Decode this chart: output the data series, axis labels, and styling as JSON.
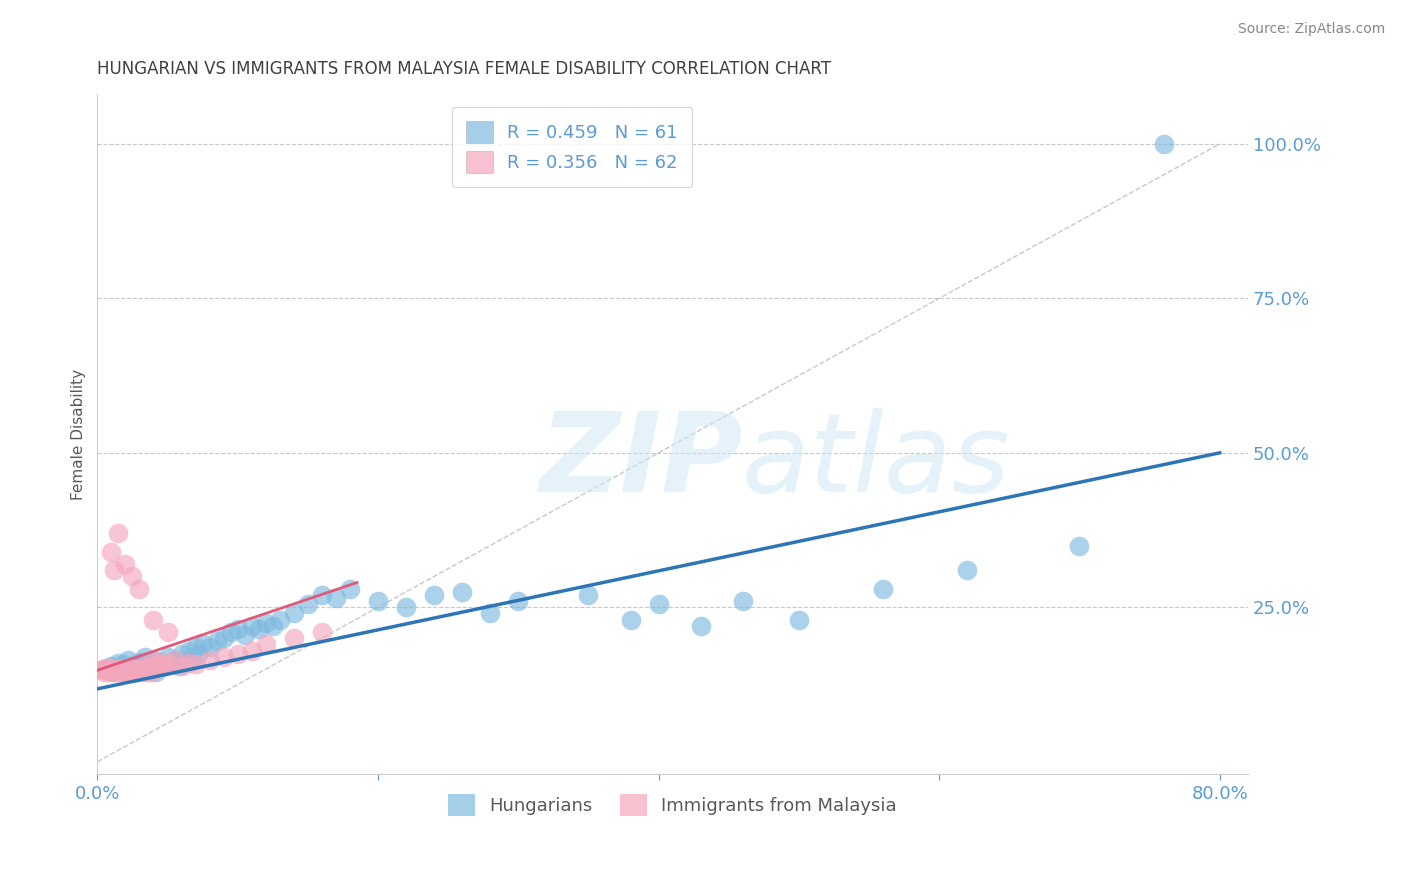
{
  "title": "HUNGARIAN VS IMMIGRANTS FROM MALAYSIA FEMALE DISABILITY CORRELATION CHART",
  "source": "Source: ZipAtlas.com",
  "ylabel": "Female Disability",
  "xlim": [
    0.0,
    0.82
  ],
  "ylim": [
    -0.02,
    1.08
  ],
  "xticks": [
    0.0,
    0.2,
    0.4,
    0.6,
    0.8
  ],
  "xtick_labels": [
    "0.0%",
    "",
    "",
    "",
    "80.0%"
  ],
  "ytick_labels": [
    "100.0%",
    "75.0%",
    "50.0%",
    "25.0%"
  ],
  "ytick_positions": [
    1.0,
    0.75,
    0.5,
    0.25
  ],
  "grid_color": "#c8c8c8",
  "background_color": "#ffffff",
  "blue_color": "#7fbadf",
  "pink_color": "#f4a7bc",
  "blue_line_color": "#2e75b6",
  "pink_line_color": "#e05a7a",
  "ref_line_color": "#c8c8c8",
  "title_color": "#404040",
  "axis_label_color": "#595959",
  "tick_label_color": "#5b9bd5",
  "legend_label_color": "#5b9bd5",
  "blue_scatter_x": [
    0.005,
    0.01,
    0.012,
    0.015,
    0.018,
    0.02,
    0.022,
    0.025,
    0.028,
    0.03,
    0.032,
    0.034,
    0.036,
    0.038,
    0.04,
    0.042,
    0.045,
    0.048,
    0.05,
    0.052,
    0.055,
    0.058,
    0.06,
    0.062,
    0.065,
    0.068,
    0.07,
    0.072,
    0.075,
    0.08,
    0.085,
    0.09,
    0.095,
    0.1,
    0.105,
    0.11,
    0.115,
    0.12,
    0.125,
    0.13,
    0.14,
    0.15,
    0.16,
    0.17,
    0.18,
    0.2,
    0.22,
    0.24,
    0.26,
    0.28,
    0.3,
    0.35,
    0.38,
    0.4,
    0.43,
    0.46,
    0.5,
    0.56,
    0.62,
    0.7,
    0.76
  ],
  "blue_scatter_y": [
    0.15,
    0.155,
    0.145,
    0.16,
    0.158,
    0.148,
    0.165,
    0.155,
    0.145,
    0.162,
    0.158,
    0.17,
    0.148,
    0.155,
    0.165,
    0.145,
    0.162,
    0.155,
    0.17,
    0.158,
    0.165,
    0.155,
    0.175,
    0.162,
    0.18,
    0.168,
    0.185,
    0.175,
    0.19,
    0.185,
    0.195,
    0.2,
    0.21,
    0.215,
    0.205,
    0.22,
    0.215,
    0.225,
    0.22,
    0.23,
    0.24,
    0.255,
    0.27,
    0.265,
    0.28,
    0.26,
    0.25,
    0.27,
    0.275,
    0.24,
    0.26,
    0.27,
    0.23,
    0.255,
    0.22,
    0.26,
    0.23,
    0.28,
    0.31,
    0.35,
    1.0
  ],
  "pink_scatter_x": [
    0.003,
    0.004,
    0.005,
    0.006,
    0.007,
    0.008,
    0.009,
    0.01,
    0.011,
    0.012,
    0.013,
    0.014,
    0.015,
    0.016,
    0.017,
    0.018,
    0.019,
    0.02,
    0.021,
    0.022,
    0.023,
    0.024,
    0.025,
    0.026,
    0.027,
    0.028,
    0.029,
    0.03,
    0.031,
    0.032,
    0.033,
    0.034,
    0.035,
    0.036,
    0.037,
    0.038,
    0.039,
    0.04,
    0.042,
    0.044,
    0.046,
    0.048,
    0.05,
    0.055,
    0.06,
    0.065,
    0.07,
    0.08,
    0.09,
    0.1,
    0.11,
    0.12,
    0.14,
    0.16,
    0.01,
    0.012,
    0.015,
    0.02,
    0.025,
    0.03,
    0.04,
    0.05
  ],
  "pink_scatter_y": [
    0.148,
    0.15,
    0.145,
    0.152,
    0.148,
    0.145,
    0.15,
    0.148,
    0.145,
    0.15,
    0.148,
    0.145,
    0.15,
    0.148,
    0.145,
    0.15,
    0.148,
    0.145,
    0.15,
    0.148,
    0.145,
    0.148,
    0.15,
    0.145,
    0.15,
    0.148,
    0.145,
    0.15,
    0.148,
    0.15,
    0.145,
    0.15,
    0.155,
    0.145,
    0.15,
    0.155,
    0.145,
    0.165,
    0.155,
    0.16,
    0.158,
    0.155,
    0.16,
    0.165,
    0.155,
    0.16,
    0.158,
    0.165,
    0.17,
    0.175,
    0.18,
    0.19,
    0.2,
    0.21,
    0.34,
    0.31,
    0.37,
    0.32,
    0.3,
    0.28,
    0.23,
    0.21
  ],
  "blue_trend_x0": 0.0,
  "blue_trend_x1": 0.8,
  "blue_trend_y0": 0.118,
  "blue_trend_y1": 0.5,
  "pink_trend_x0": 0.0,
  "pink_trend_x1": 0.185,
  "pink_trend_y0": 0.148,
  "pink_trend_y1": 0.29,
  "ref_line_x0": 0.0,
  "ref_line_x1": 0.8,
  "ref_line_y0": 0.0,
  "ref_line_y1": 1.0
}
